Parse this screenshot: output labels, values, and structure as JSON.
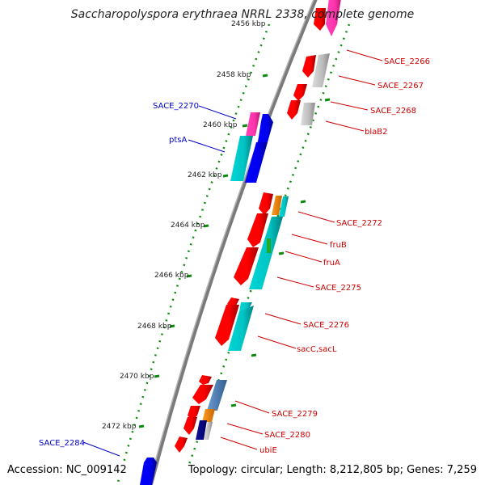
{
  "title": "Saccharopolyspora erythraea NRRL 2338, complete genome",
  "accession": "Accession: NC_009142",
  "topology": "Topology: circular; Length: 8,212,805 bp; Genes: 7,259",
  "colors": {
    "backbone": "#808080",
    "axis_dots": "#0b8a0b",
    "label_right": "#cc0000",
    "label_left": "#0000cc",
    "red": "#ff0000",
    "blue": "#0000ee",
    "cyan": "#00c8c8",
    "pink": "#ff33aa",
    "gray": "#bbbbbb",
    "orange": "#ff8c00",
    "steel": "#4f7fb8",
    "navy": "#000080",
    "green": "#22aa22"
  },
  "scale_labels": [
    "2456 kbp",
    "2458 kbp",
    "2460 kbp",
    "2462 kbp",
    "2464 kbp",
    "2466 kbp",
    "2468 kbp",
    "2470 kbp",
    "2472 kbp"
  ],
  "labels_right": [
    "SACE_2266",
    "SACE_2267",
    "SACE_2268",
    "blaB2",
    "SACE_2272",
    "fruB",
    "fruA",
    "SACE_2275",
    "SACE_2276",
    "sacC,sacL",
    "SACE_2279",
    "SACE_2280",
    "ubiE"
  ],
  "labels_left": [
    "SACE_2270",
    "ptsA",
    "SACE_2284"
  ]
}
